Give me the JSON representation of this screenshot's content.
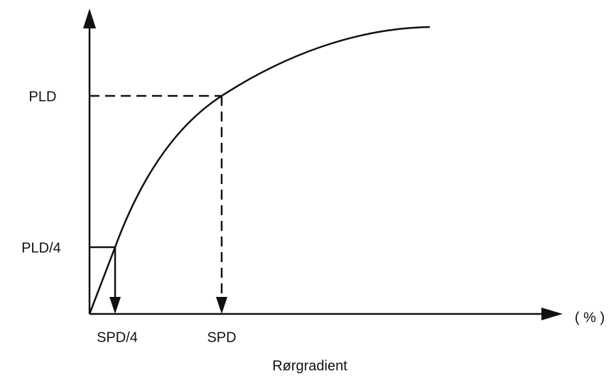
{
  "y_labels": {
    "top": "PLD",
    "bottom": "PLD/4"
  },
  "x_labels": {
    "left": "SPD/4",
    "right": "SPD"
  },
  "x_unit": "( % )",
  "x_axis_title": "Rørgradient"
}
